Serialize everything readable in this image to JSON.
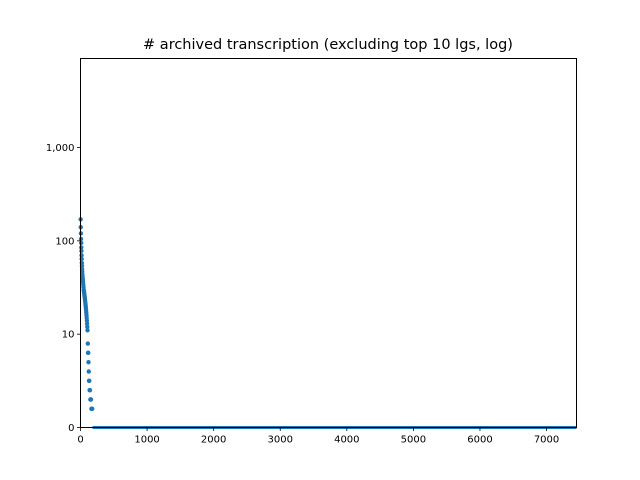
{
  "chart_data": {
    "type": "scatter",
    "title": "# archived transcription (excluding top 10 lgs, log)",
    "xlabel": "",
    "ylabel": "",
    "xlim": [
      0,
      7450
    ],
    "ylim": [
      0,
      9000
    ],
    "yscale": "symlog (linthresh 10)",
    "grid": false,
    "marker_color": "#1f77b4",
    "x_ticks": [
      {
        "value": 0,
        "label": "0"
      },
      {
        "value": 1000,
        "label": "1000"
      },
      {
        "value": 2000,
        "label": "2000"
      },
      {
        "value": 3000,
        "label": "3000"
      },
      {
        "value": 4000,
        "label": "4000"
      },
      {
        "value": 5000,
        "label": "5000"
      },
      {
        "value": 6000,
        "label": "6000"
      },
      {
        "value": 7000,
        "label": "7000"
      }
    ],
    "y_ticks": [
      {
        "value": 0,
        "label": "0"
      },
      {
        "value": 10,
        "label": "10"
      },
      {
        "value": 100,
        "label": "100"
      },
      {
        "value": 1000,
        "label": "1,000"
      }
    ],
    "head_points": [
      {
        "x": 2,
        "y": 170
      },
      {
        "x": 4,
        "y": 140
      },
      {
        "x": 6,
        "y": 120
      },
      {
        "x": 8,
        "y": 105
      },
      {
        "x": 10,
        "y": 95
      },
      {
        "x": 12,
        "y": 85
      },
      {
        "x": 14,
        "y": 78
      },
      {
        "x": 16,
        "y": 70
      },
      {
        "x": 18,
        "y": 64
      },
      {
        "x": 20,
        "y": 58
      },
      {
        "x": 22,
        "y": 54
      },
      {
        "x": 24,
        "y": 50
      },
      {
        "x": 26,
        "y": 47
      },
      {
        "x": 28,
        "y": 44
      },
      {
        "x": 30,
        "y": 42
      },
      {
        "x": 33,
        "y": 40
      },
      {
        "x": 36,
        "y": 38
      },
      {
        "x": 39,
        "y": 36
      },
      {
        "x": 42,
        "y": 34
      },
      {
        "x": 45,
        "y": 32
      },
      {
        "x": 48,
        "y": 30
      },
      {
        "x": 51,
        "y": 29
      },
      {
        "x": 54,
        "y": 28
      },
      {
        "x": 57,
        "y": 27
      },
      {
        "x": 60,
        "y": 26
      },
      {
        "x": 63,
        "y": 25
      },
      {
        "x": 66,
        "y": 24
      },
      {
        "x": 69,
        "y": 23
      },
      {
        "x": 72,
        "y": 22
      },
      {
        "x": 75,
        "y": 21
      },
      {
        "x": 78,
        "y": 20
      },
      {
        "x": 81,
        "y": 19
      },
      {
        "x": 84,
        "y": 18
      },
      {
        "x": 87,
        "y": 17
      },
      {
        "x": 90,
        "y": 16
      },
      {
        "x": 93,
        "y": 15
      },
      {
        "x": 96,
        "y": 14
      },
      {
        "x": 99,
        "y": 13
      },
      {
        "x": 102,
        "y": 12
      },
      {
        "x": 105,
        "y": 11
      },
      {
        "x": 110,
        "y": 9
      },
      {
        "x": 113,
        "y": 8
      },
      {
        "x": 116,
        "y": 8
      },
      {
        "x": 120,
        "y": 7
      },
      {
        "x": 124,
        "y": 6
      },
      {
        "x": 128,
        "y": 5
      },
      {
        "x": 132,
        "y": 5
      },
      {
        "x": 137,
        "y": 4
      },
      {
        "x": 142,
        "y": 4
      },
      {
        "x": 148,
        "y": 3
      },
      {
        "x": 153,
        "y": 3
      },
      {
        "x": 158,
        "y": 3
      },
      {
        "x": 164,
        "y": 2
      },
      {
        "x": 170,
        "y": 2
      },
      {
        "x": 176,
        "y": 2
      }
    ],
    "tail": {
      "x_start": 180,
      "x_end": 7450,
      "y": 0
    }
  }
}
